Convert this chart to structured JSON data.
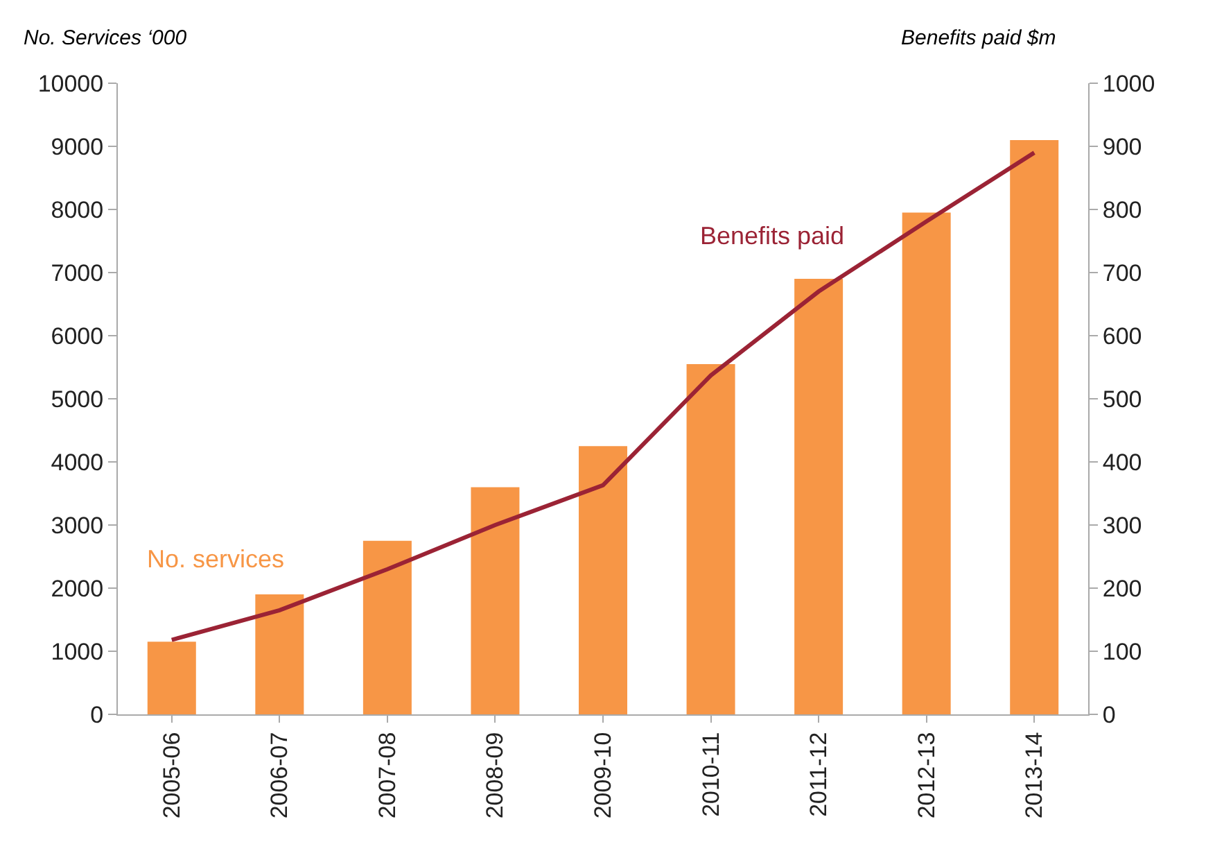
{
  "chart_data": {
    "type": "bar",
    "ylabel": "No. Services ‘000",
    "y2label": "Benefits paid $m",
    "categories": [
      "2005-06",
      "2006-07",
      "2007-08",
      "2008-09",
      "2009-10",
      "2010-11",
      "2011-12",
      "2012-13",
      "2013-14"
    ],
    "series": [
      {
        "name": "No. services",
        "color": "#f79646",
        "values": [
          1150,
          1900,
          2750,
          3600,
          4250,
          5550,
          6900,
          7950,
          9100
        ]
      },
      {
        "name": "Benefits paid",
        "type": "line",
        "axis": "y2",
        "color": "#9b2335",
        "values": [
          118,
          165,
          230,
          300,
          363,
          537,
          670,
          781,
          890
        ]
      }
    ],
    "ylim": [
      0,
      10000
    ],
    "yticks": [
      0,
      1000,
      2000,
      3000,
      4000,
      5000,
      6000,
      7000,
      8000,
      9000,
      10000
    ],
    "y2lim": [
      0,
      1000
    ],
    "y2ticks": [
      0,
      100,
      200,
      300,
      400,
      500,
      600,
      700,
      800,
      900,
      1000
    ],
    "grid": false,
    "legend": false,
    "marker": "none",
    "line_style": "solid"
  }
}
